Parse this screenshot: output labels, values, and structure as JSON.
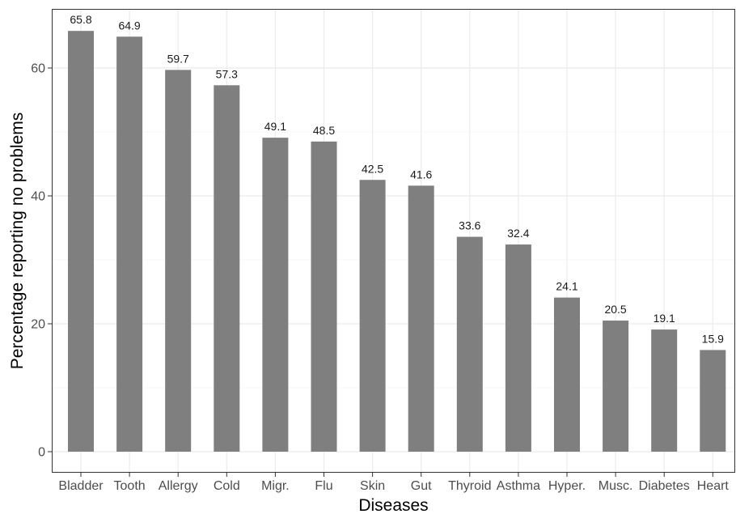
{
  "chart_data": {
    "type": "bar",
    "xlabel": "Diseases",
    "ylabel": "Percentage reporting no problems",
    "categories": [
      "Bladder",
      "Tooth",
      "Allergy",
      "Cold",
      "Migr.",
      "Flu",
      "Skin",
      "Gut",
      "Thyroid",
      "Asthma",
      "Hyper.",
      "Musc.",
      "Diabetes",
      "Heart"
    ],
    "values": [
      65.8,
      64.9,
      59.7,
      57.3,
      49.1,
      48.5,
      42.5,
      41.6,
      33.6,
      32.4,
      24.1,
      20.5,
      19.1,
      15.9
    ],
    "data_labels": [
      "65.8",
      "64.9",
      "59.7",
      "57.3",
      "49.1",
      "48.5",
      "42.5",
      "41.6",
      "33.6",
      "32.4",
      "24.1",
      "20.5",
      "19.1",
      "15.9"
    ],
    "y_ticks": [
      0,
      20,
      40,
      60
    ],
    "y_tick_labels": [
      "0",
      "20",
      "40",
      "60"
    ],
    "ylim": [
      0,
      69.1
    ],
    "grid": true,
    "legend": "none",
    "colors": {
      "bar": "#7f7f7f",
      "grid_major": "#ebebeb",
      "grid_minor": "#f5f5f5",
      "panel_border": "#333333",
      "background": "#ffffff"
    }
  }
}
